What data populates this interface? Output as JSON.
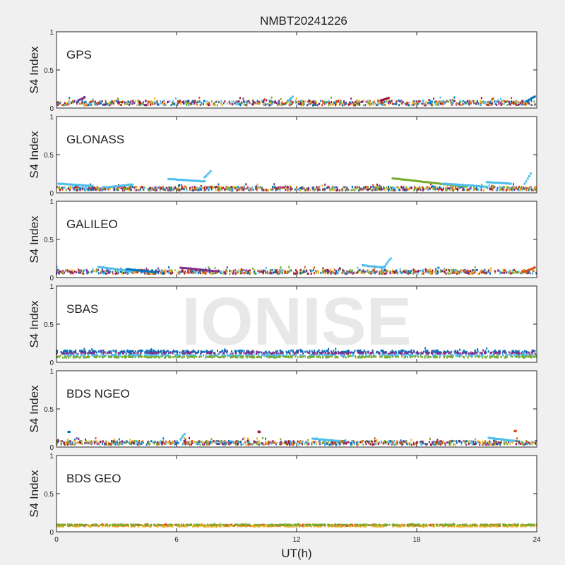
{
  "figure": {
    "title": "NMBT20241226",
    "watermark": "IONISE",
    "xlabel": "UT(h)",
    "xticks": [
      "0",
      "6",
      "12",
      "18",
      "24"
    ],
    "xlim": [
      0,
      24
    ],
    "ylabel": "S4 Index",
    "yticks": [
      "0",
      "0.5",
      "1"
    ],
    "ylim": [
      0,
      1
    ],
    "series_colors": [
      "#0072BD",
      "#D95319",
      "#EDB120",
      "#7E2F8E",
      "#77AC30",
      "#4DBEEE",
      "#A2142F"
    ]
  },
  "chart_data": [
    {
      "type": "scatter",
      "panel_label": "GPS",
      "ylabel": "S4 Index",
      "ylim": [
        0,
        1
      ],
      "xlim": [
        0,
        24
      ],
      "baseline": 0.06,
      "spread": 0.03,
      "features": [
        {
          "x0": 1.1,
          "x1": 1.4,
          "y0": 0.1,
          "y1": 0.14,
          "color": "#7E2F8E"
        },
        {
          "x0": 11.6,
          "x1": 11.8,
          "y0": 0.1,
          "y1": 0.15,
          "color": "#4DBEEE"
        },
        {
          "x0": 16.2,
          "x1": 16.6,
          "y0": 0.1,
          "y1": 0.13,
          "color": "#A2142F"
        },
        {
          "x0": 23.5,
          "x1": 23.9,
          "y0": 0.09,
          "y1": 0.15,
          "color": "#0072BD"
        }
      ]
    },
    {
      "type": "scatter",
      "panel_label": "GLONASS",
      "ylabel": "S4 Index",
      "ylim": [
        0,
        1
      ],
      "xlim": [
        0,
        24
      ],
      "baseline": 0.05,
      "spread": 0.025,
      "features": [
        {
          "x0": 0.1,
          "x1": 1.8,
          "y0": 0.12,
          "y1": 0.09,
          "color": "#4DBEEE"
        },
        {
          "x0": 2.5,
          "x1": 3.8,
          "y0": 0.07,
          "y1": 0.11,
          "color": "#4DBEEE"
        },
        {
          "x0": 5.6,
          "x1": 7.4,
          "y0": 0.18,
          "y1": 0.15,
          "color": "#4DBEEE"
        },
        {
          "x0": 7.4,
          "x1": 7.7,
          "y0": 0.2,
          "y1": 0.28,
          "color": "#4DBEEE"
        },
        {
          "x0": 16.8,
          "x1": 20.5,
          "y0": 0.19,
          "y1": 0.08,
          "color": "#77AC30"
        },
        {
          "x0": 19.3,
          "x1": 21.5,
          "y0": 0.12,
          "y1": 0.08,
          "color": "#4DBEEE"
        },
        {
          "x0": 21.5,
          "x1": 22.7,
          "y0": 0.14,
          "y1": 0.12,
          "color": "#4DBEEE"
        },
        {
          "x0": 23.4,
          "x1": 23.7,
          "y0": 0.12,
          "y1": 0.25,
          "color": "#4DBEEE"
        }
      ]
    },
    {
      "type": "scatter",
      "panel_label": "GALILEO",
      "ylabel": "S4 Index",
      "ylim": [
        0,
        1
      ],
      "xlim": [
        0,
        24
      ],
      "baseline": 0.07,
      "spread": 0.025,
      "features": [
        {
          "x0": 2.1,
          "x1": 3.8,
          "y0": 0.14,
          "y1": 0.08,
          "color": "#4DBEEE"
        },
        {
          "x0": 3.5,
          "x1": 5.0,
          "y0": 0.11,
          "y1": 0.07,
          "color": "#0072BD"
        },
        {
          "x0": 6.2,
          "x1": 8.1,
          "y0": 0.13,
          "y1": 0.08,
          "color": "#7E2F8E"
        },
        {
          "x0": 15.3,
          "x1": 16.4,
          "y0": 0.16,
          "y1": 0.13,
          "color": "#4DBEEE"
        },
        {
          "x0": 16.4,
          "x1": 16.7,
          "y0": 0.15,
          "y1": 0.25,
          "color": "#4DBEEE"
        },
        {
          "x0": 23.3,
          "x1": 23.9,
          "y0": 0.07,
          "y1": 0.13,
          "color": "#D95319"
        }
      ]
    },
    {
      "type": "scatter",
      "panel_label": "SBAS",
      "ylabel": "S4 Index",
      "ylim": [
        0,
        1
      ],
      "xlim": [
        0,
        24
      ],
      "bands": [
        {
          "y": 0.14,
          "spread": 0.015,
          "color": "#0072BD"
        },
        {
          "y": 0.12,
          "spread": 0.012,
          "color": "#7E2F8E"
        },
        {
          "y": 0.09,
          "spread": 0.01,
          "color": "#4DBEEE"
        },
        {
          "y": 0.07,
          "spread": 0.008,
          "color": "#77AC30"
        }
      ]
    },
    {
      "type": "scatter",
      "panel_label": "BDS NGEO",
      "ylabel": "S4 Index",
      "ylim": [
        0,
        1
      ],
      "xlim": [
        0,
        24
      ],
      "baseline": 0.05,
      "spread": 0.025,
      "features": [
        {
          "x0": 0.6,
          "x1": 0.65,
          "y0": 0.2,
          "y1": 0.2,
          "color": "#0072BD"
        },
        {
          "x0": 6.2,
          "x1": 6.4,
          "y0": 0.1,
          "y1": 0.17,
          "color": "#4DBEEE"
        },
        {
          "x0": 10.1,
          "x1": 10.15,
          "y0": 0.2,
          "y1": 0.2,
          "color": "#A2142F"
        },
        {
          "x0": 12.8,
          "x1": 14.1,
          "y0": 0.11,
          "y1": 0.08,
          "color": "#4DBEEE"
        },
        {
          "x0": 21.6,
          "x1": 22.9,
          "y0": 0.12,
          "y1": 0.08,
          "color": "#4DBEEE"
        },
        {
          "x0": 22.9,
          "x1": 22.95,
          "y0": 0.21,
          "y1": 0.21,
          "color": "#D95319"
        }
      ]
    },
    {
      "type": "scatter",
      "panel_label": "BDS GEO",
      "ylabel": "S4 Index",
      "ylim": [
        0,
        1
      ],
      "xlim": [
        0,
        24
      ],
      "bands": [
        {
          "y": 0.085,
          "spread": 0.008,
          "color": "#D95319"
        },
        {
          "y": 0.075,
          "spread": 0.008,
          "color": "#EDB120"
        },
        {
          "y": 0.09,
          "spread": 0.005,
          "color": "#77AC30"
        }
      ]
    }
  ]
}
